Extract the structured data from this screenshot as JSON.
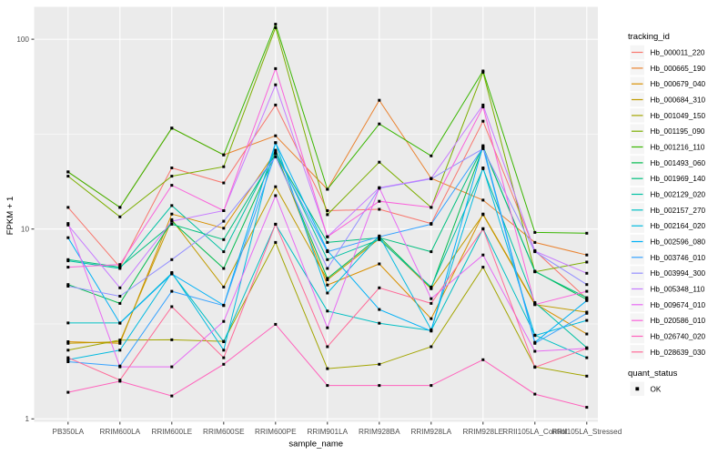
{
  "colors": {
    "background": "#FFFFFF",
    "panel": "#EBEBEB",
    "grid": "#FFFFFF",
    "tick_mark": "#333333",
    "tick_label": "#4D4D4D",
    "axis_title": "#000000",
    "point": "#000000",
    "legend_key": "#F5F5F5",
    "legend_text": "#000000"
  },
  "chart_data": {
    "type": "line",
    "title": "",
    "xlabel": "sample_name",
    "ylabel": "FPKM + 1",
    "y_scale": "log10",
    "ylim": [
      0.97,
      150
    ],
    "y_ticks": [
      1,
      10,
      100
    ],
    "grid": "on",
    "legend_position": "right",
    "legend_title": "tracking_id",
    "quant_legend": {
      "title": "quant_status",
      "label": "OK"
    },
    "categories": [
      "PB350LA",
      "RRIM600LA",
      "RRIM600LE",
      "RRIM600SE",
      "RRIM600PE",
      "RRIM901LA",
      "RRIM928BA",
      "RRIM928LA",
      "RRIM928LE",
      "RRII105LA_Control",
      "RRII105LA_Stressed"
    ],
    "series": [
      {
        "name": "Hb_000011_220",
        "color": "#F8766D",
        "values": [
          13,
          6.3,
          21,
          17.5,
          45,
          12.5,
          12.7,
          10.7,
          37,
          7.7,
          4.3
        ]
      },
      {
        "name": "Hb_000665_190",
        "color": "#EA8331",
        "values": [
          20,
          13,
          34,
          24.6,
          31,
          16.2,
          47.7,
          18.5,
          14.2,
          8.5,
          7.3
        ]
      },
      {
        "name": "Hb_000679_040",
        "color": "#D89000",
        "values": [
          2.55,
          2.5,
          12,
          10.1,
          25.5,
          5.07,
          6.55,
          3.37,
          12,
          4.05,
          2.8
        ]
      },
      {
        "name": "Hb_000684_310",
        "color": "#C09B00",
        "values": [
          2.5,
          2.55,
          11.2,
          4.95,
          16.7,
          5.4,
          8.9,
          4.85,
          11.9,
          4.0,
          3.65
        ]
      },
      {
        "name": "Hb_001049_150",
        "color": "#A3A500",
        "values": [
          2.3,
          2.6,
          2.61,
          2.56,
          8.5,
          1.84,
          1.94,
          2.4,
          6.3,
          1.88,
          1.68
        ]
      },
      {
        "name": "Hb_001195_090",
        "color": "#7CAE00",
        "values": [
          19,
          11.6,
          19,
          21.3,
          115,
          11.9,
          22.5,
          13,
          67,
          5.95,
          6.7
        ]
      },
      {
        "name": "Hb_001216_110",
        "color": "#39B600",
        "values": [
          20,
          13,
          34,
          24.6,
          120,
          16.2,
          35.8,
          24.3,
          68,
          9.6,
          9.5
        ]
      },
      {
        "name": "Hb_001493_060",
        "color": "#00BB4E",
        "values": [
          5.1,
          4.06,
          11,
          6.2,
          25,
          5.5,
          9.1,
          4.9,
          27,
          6.0,
          4.25
        ]
      },
      {
        "name": "Hb_001969_140",
        "color": "#00BF7D",
        "values": [
          6.9,
          6.3,
          10.6,
          8.8,
          25,
          8.5,
          9.0,
          7.6,
          27.2,
          5.97,
          4.35
        ]
      },
      {
        "name": "Hb_002129_020",
        "color": "#00C1A3",
        "values": [
          6.8,
          6.2,
          13.3,
          7.6,
          26,
          6.9,
          8.8,
          4.95,
          20.8,
          4.1,
          2.37
        ]
      },
      {
        "name": "Hb_002157_270",
        "color": "#00BFC4",
        "values": [
          3.2,
          3.2,
          5.85,
          2.55,
          10.6,
          3.7,
          3.19,
          2.92,
          10.05,
          2.76,
          2.1
        ]
      },
      {
        "name": "Hb_002164_020",
        "color": "#00BAE0",
        "values": [
          2.05,
          2.3,
          5.9,
          2.3,
          28.5,
          4.6,
          9.2,
          2.95,
          21,
          2.75,
          3.3
        ]
      },
      {
        "name": "Hb_002596_080",
        "color": "#00B0F6",
        "values": [
          9,
          3.19,
          5.8,
          3.97,
          28.5,
          7.7,
          3.77,
          2.9,
          27.5,
          2.53,
          4.2
        ]
      },
      {
        "name": "Hb_003746_010",
        "color": "#35A2FF",
        "values": [
          2.0,
          1.9,
          4.7,
          3.95,
          25,
          7.6,
          9.1,
          10.6,
          26.8,
          2.5,
          3.6
        ]
      },
      {
        "name": "Hb_003994_300",
        "color": "#9590FF",
        "values": [
          5.0,
          4.43,
          6.9,
          11,
          24,
          6.2,
          16.4,
          18.4,
          26.5,
          7.6,
          5.1
        ]
      },
      {
        "name": "Hb_005348_110",
        "color": "#C77CFF",
        "values": [
          10.5,
          4.9,
          11,
          12.5,
          57.5,
          9.1,
          16.5,
          18.5,
          45,
          7.65,
          5.85
        ]
      },
      {
        "name": "Hb_009674_010",
        "color": "#E76BF3",
        "values": [
          10.7,
          1.88,
          1.88,
          3.26,
          15,
          3.02,
          16.5,
          4.3,
          7.3,
          2.27,
          2.35
        ]
      },
      {
        "name": "Hb_020586_010",
        "color": "#FA62DB",
        "values": [
          6.3,
          6.5,
          17,
          12.5,
          70,
          9.1,
          14,
          13,
          44,
          4.0,
          4.7
        ]
      },
      {
        "name": "Hb_026740_020",
        "color": "#FF62BC",
        "values": [
          1.38,
          1.58,
          1.32,
          1.94,
          3.15,
          1.5,
          1.5,
          1.5,
          2.05,
          1.35,
          1.15
        ]
      },
      {
        "name": "Hb_028639_030",
        "color": "#FF6A98",
        "values": [
          2.1,
          1.6,
          3.9,
          2.1,
          10.6,
          2.4,
          4.9,
          4.06,
          10,
          1.87,
          2.35
        ]
      }
    ]
  }
}
